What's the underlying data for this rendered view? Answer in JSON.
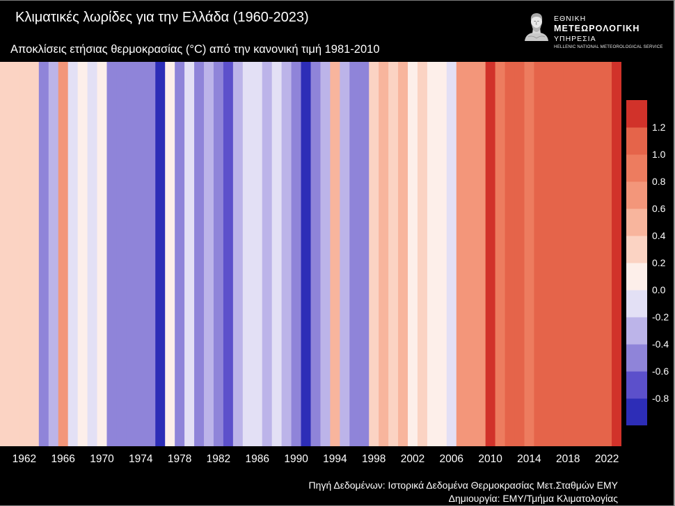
{
  "logo": {
    "icon": "bust-icon",
    "line1": "ΕΘΝΙΚΗ",
    "line2": "ΜΕΤΕΩΡΟΛΟΓΙΚΗ",
    "line3": "ΥΠΗΡΕΣΙΑ",
    "line4": "HELLENIC NATIONAL METEOROLOGICAL SERVICE"
  },
  "footer": {
    "source": "Πηγή Δεδομένων: Ιστορικά Δεδομένα Θερμοκρασίας Μετ.Σταθμών ΕΜΥ",
    "credit": "Δημιουργία: ΕΜΥ/Τμήμα Κλιματολογίας"
  },
  "colors": {
    "background": "#000000",
    "text": "#ffffff",
    "bands": [
      "#2d2db7",
      "#5c50cb",
      "#8f84d9",
      "#bcb4e9",
      "#e3e0f5",
      "#fdefea",
      "#fbd3c3",
      "#f8b59d",
      "#f3967a",
      "#ed7c5f",
      "#e5644a",
      "#d1322a"
    ]
  },
  "chart_data": {
    "type": "heatmap",
    "title": "Κλιματικές λωρίδες για την Ελλάδα (1960-2023)",
    "subtitle": "Αποκλίσεις ετήσιας θερμοκρασίας (°C) από την κανονική τιμή 1981-2010",
    "x": [
      1960,
      1961,
      1962,
      1963,
      1964,
      1965,
      1966,
      1967,
      1968,
      1969,
      1970,
      1971,
      1972,
      1973,
      1974,
      1975,
      1976,
      1977,
      1978,
      1979,
      1980,
      1981,
      1982,
      1983,
      1984,
      1985,
      1986,
      1987,
      1988,
      1989,
      1990,
      1991,
      1992,
      1993,
      1994,
      1995,
      1996,
      1997,
      1998,
      1999,
      2000,
      2001,
      2002,
      2003,
      2004,
      2005,
      2006,
      2007,
      2008,
      2009,
      2010,
      2011,
      2012,
      2013,
      2014,
      2015,
      2016,
      2017,
      2018,
      2019,
      2020,
      2021,
      2022,
      2023
    ],
    "values": [
      0.35,
      0.3,
      0.25,
      0.33,
      -0.5,
      -0.3,
      0.65,
      -0.15,
      0.08,
      -0.08,
      0.1,
      -0.48,
      -0.42,
      -0.5,
      -0.48,
      -0.52,
      -0.9,
      0.05,
      -0.48,
      -0.15,
      -0.5,
      -0.3,
      -0.5,
      -0.7,
      -0.25,
      -0.12,
      -0.1,
      -0.35,
      -0.15,
      -0.28,
      -0.5,
      -0.9,
      -0.55,
      -0.32,
      0.42,
      -0.3,
      -0.5,
      -0.45,
      0.22,
      0.55,
      0.3,
      0.5,
      0.18,
      0.28,
      0.08,
      0.15,
      -0.12,
      0.65,
      0.7,
      0.68,
      1.3,
      0.85,
      1.05,
      1.02,
      0.88,
      1.05,
      1.02,
      1.05,
      1.12,
      1.05,
      1.08,
      1.05,
      1.08,
      1.28
    ],
    "x_tick_labels": [
      "1962",
      "1966",
      "1970",
      "1974",
      "1978",
      "1982",
      "1986",
      "1990",
      "1994",
      "1998",
      "2002",
      "2006",
      "2010",
      "2014",
      "2018",
      "2022"
    ],
    "colorbar": {
      "min": -1.0,
      "max": 1.4,
      "step": 0.2,
      "placement": "right",
      "tick_values": [
        -0.8,
        -0.6,
        -0.4,
        -0.2,
        0.0,
        0.2,
        0.4,
        0.6,
        0.8,
        1.0,
        1.2
      ],
      "tick_labels": [
        "-0.8",
        "-0.6",
        "-0.4",
        "-0.2",
        "0.0",
        "0.2",
        "0.4",
        "0.6",
        "0.8",
        "1.0",
        "1.2"
      ]
    }
  }
}
